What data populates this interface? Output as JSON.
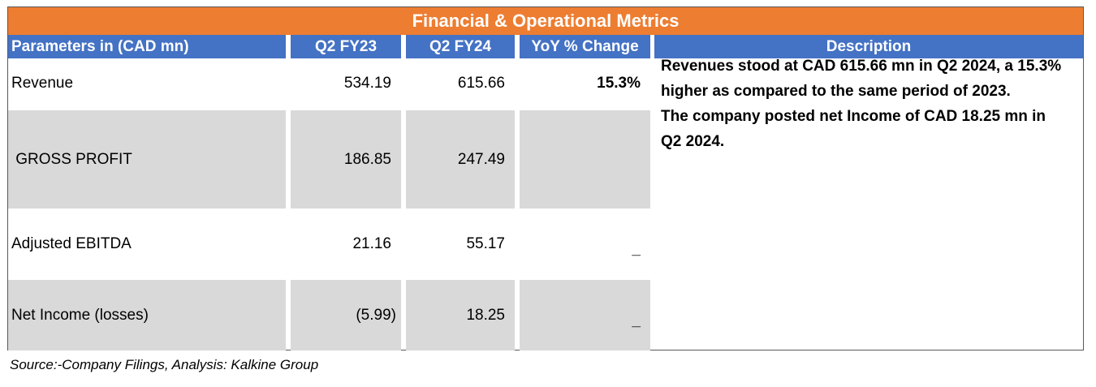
{
  "title": "Financial & Operational Metrics",
  "headers": {
    "parameter": "Parameters in (CAD mn)",
    "q2fy23": "Q2 FY23",
    "q2fy24": "Q2 FY24",
    "yoy": "YoY % Change",
    "description": "Description"
  },
  "rows": [
    {
      "label": "Revenue",
      "q2fy23": "534.19",
      "q2fy24": "615.66",
      "yoy": "15.3%"
    },
    {
      "label": " GROSS PROFIT",
      "q2fy23": "186.85",
      "q2fy24": "247.49",
      "yoy": ""
    },
    {
      "label": "Adjusted EBITDA",
      "q2fy23": "21.16",
      "q2fy24": "55.17",
      "yoy": "_"
    },
    {
      "label": "Net Income (losses)",
      "q2fy23": "(5.99)",
      "q2fy24": "18.25",
      "yoy": "_"
    }
  ],
  "description": {
    "para1": "Revenues stood at CAD 615.66 mn in Q2 2024, a 15.3% higher as compared to the same period of 2023.",
    "para2": "The company posted net Income of CAD 18.25 mn in Q2 2024."
  },
  "source": "Source:-Company Filings, Analysis: Kalkine Group",
  "colors": {
    "title_bg": "#ED7D31",
    "header_bg": "#4472C4",
    "shade": "#D9D9D9"
  }
}
